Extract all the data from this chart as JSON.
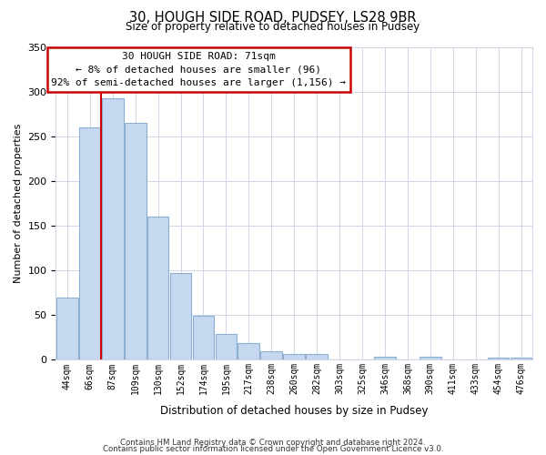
{
  "title": "30, HOUGH SIDE ROAD, PUDSEY, LS28 9BR",
  "subtitle": "Size of property relative to detached houses in Pudsey",
  "xlabel": "Distribution of detached houses by size in Pudsey",
  "ylabel": "Number of detached properties",
  "bar_labels": [
    "44sqm",
    "66sqm",
    "87sqm",
    "109sqm",
    "130sqm",
    "152sqm",
    "174sqm",
    "195sqm",
    "217sqm",
    "238sqm",
    "260sqm",
    "282sqm",
    "303sqm",
    "325sqm",
    "346sqm",
    "368sqm",
    "390sqm",
    "411sqm",
    "433sqm",
    "454sqm",
    "476sqm"
  ],
  "bar_values": [
    70,
    260,
    293,
    265,
    160,
    97,
    49,
    29,
    19,
    10,
    6,
    6,
    0,
    0,
    3,
    0,
    3,
    0,
    0,
    2,
    2
  ],
  "bar_color": "#c5d8f0",
  "bar_edge_color": "#8aafd0",
  "vline_x": 1.5,
  "vline_color": "#cc0000",
  "ylim": [
    0,
    350
  ],
  "yticks": [
    0,
    50,
    100,
    150,
    200,
    250,
    300,
    350
  ],
  "annotation_title": "30 HOUGH SIDE ROAD: 71sqm",
  "annotation_line1": "← 8% of detached houses are smaller (96)",
  "annotation_line2": "92% of semi-detached houses are larger (1,156) →",
  "annotation_box_color": "#ffffff",
  "annotation_box_edge": "#cc0000",
  "footer_line1": "Contains HM Land Registry data © Crown copyright and database right 2024.",
  "footer_line2": "Contains public sector information licensed under the Open Government Licence v3.0.",
  "bg_color": "#ffffff",
  "grid_color": "#d0d8e8"
}
